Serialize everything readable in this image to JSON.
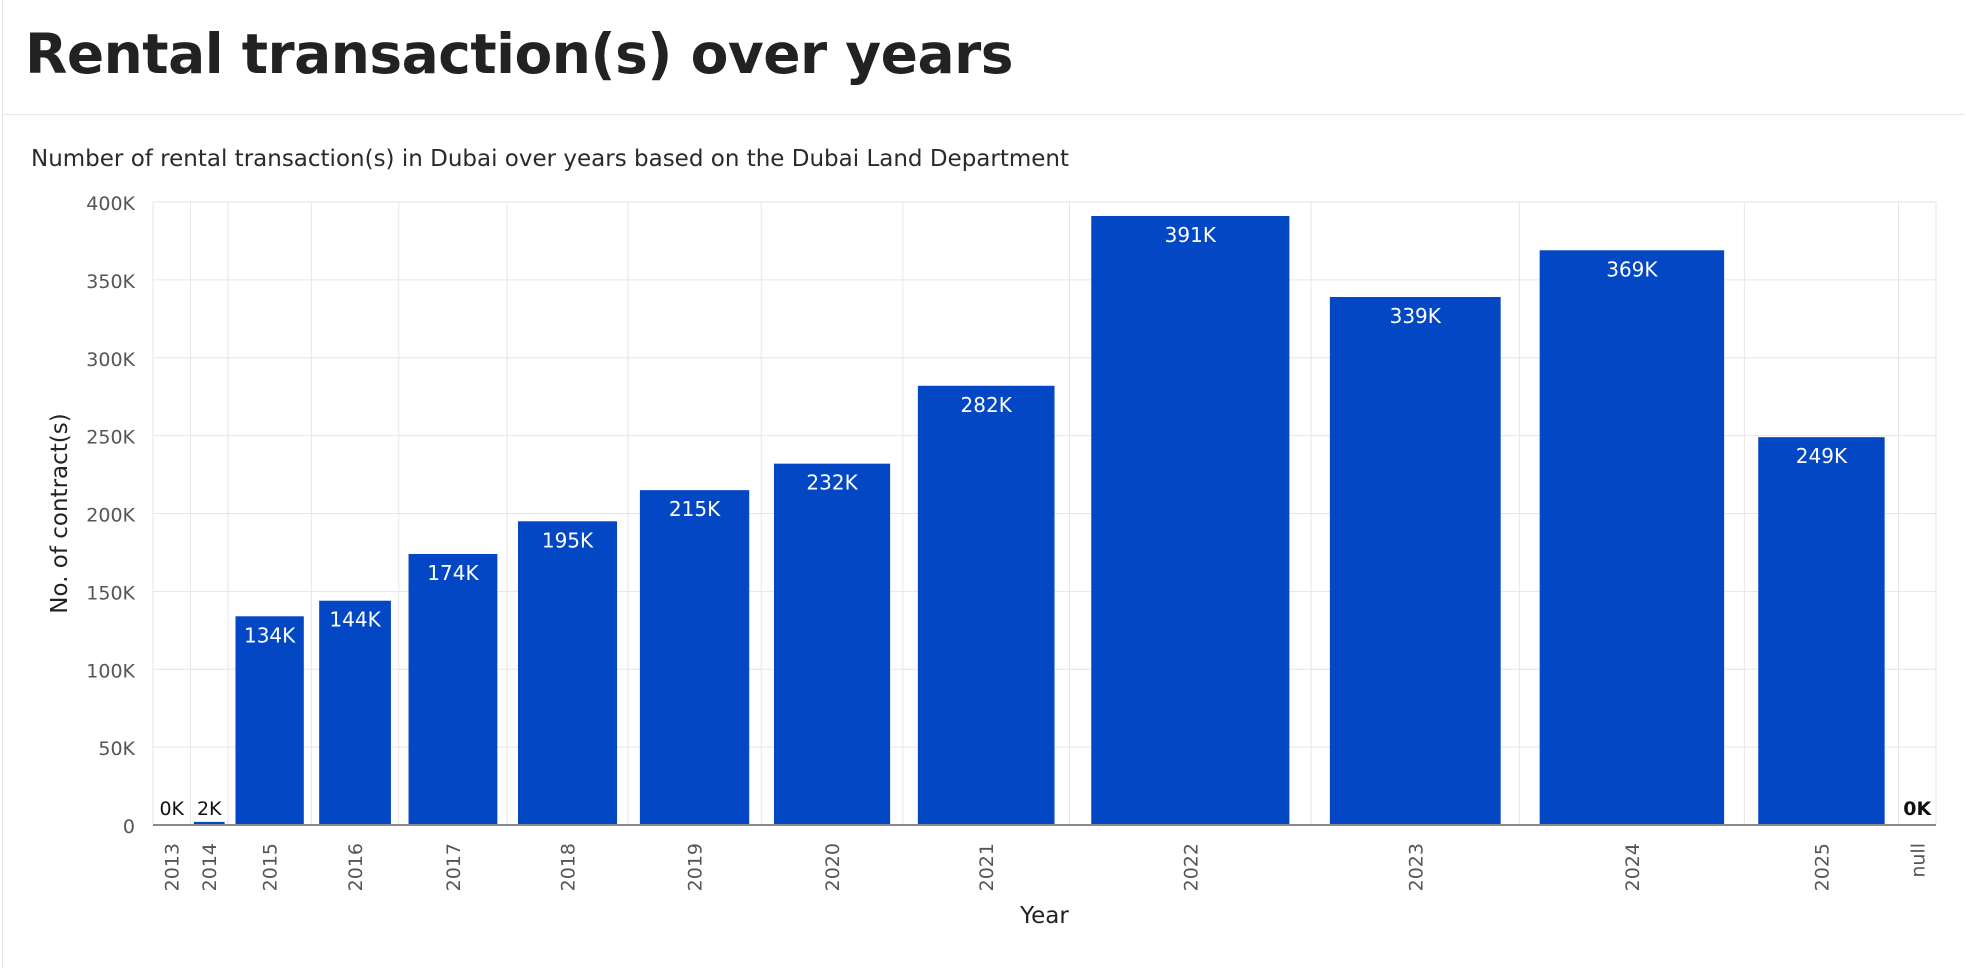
{
  "header": {
    "title": "Rental transaction(s) over years"
  },
  "chart_data": {
    "type": "bar",
    "title": "",
    "subtitle": "Number of rental transaction(s) in Dubai over years based on the Dubai Land Department",
    "xlabel": "Year",
    "ylabel": "No. of contract(s)",
    "ylim": [
      0,
      400000
    ],
    "yticks": [
      {
        "value": 0,
        "label": "0"
      },
      {
        "value": 50000,
        "label": "50K"
      },
      {
        "value": 100000,
        "label": "100K"
      },
      {
        "value": 150000,
        "label": "150K"
      },
      {
        "value": 200000,
        "label": "200K"
      },
      {
        "value": 250000,
        "label": "250K"
      },
      {
        "value": 300000,
        "label": "300K"
      },
      {
        "value": 350000,
        "label": "350K"
      },
      {
        "value": 400000,
        "label": "400K"
      }
    ],
    "grid": true,
    "bar_color": "#0347c5",
    "categories": [
      "2013",
      "2014",
      "2015",
      "2016",
      "2017",
      "2018",
      "2019",
      "2020",
      "2021",
      "2022",
      "2023",
      "2024",
      "2025",
      "null"
    ],
    "values": [
      0,
      2000,
      134000,
      144000,
      174000,
      195000,
      215000,
      232000,
      282000,
      391000,
      339000,
      369000,
      249000,
      0
    ],
    "data_labels": [
      "0K",
      "2K",
      "134K",
      "144K",
      "174K",
      "195K",
      "215K",
      "232K",
      "282K",
      "391K",
      "339K",
      "369K",
      "249K",
      "0K"
    ],
    "bar_width_weights": [
      0.45,
      0.45,
      1.0,
      1.05,
      1.3,
      1.45,
      1.6,
      1.7,
      2.0,
      2.9,
      2.5,
      2.7,
      1.85,
      0.45
    ]
  }
}
